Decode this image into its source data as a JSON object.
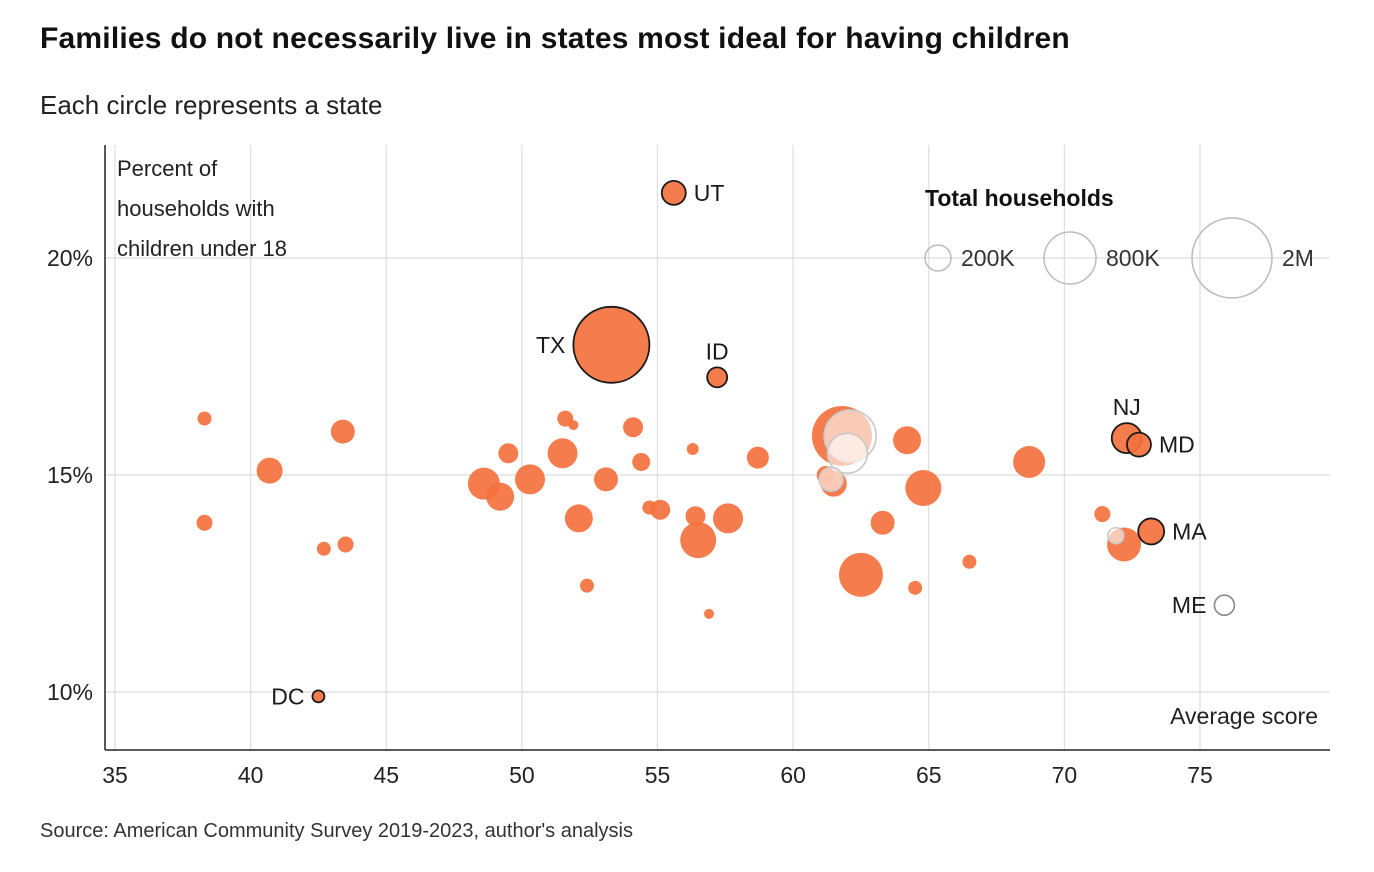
{
  "header": {
    "title": "Families do not necessarily live in states most ideal for having children",
    "subtitle": "Each circle represents a state"
  },
  "footer": {
    "source": "Source: American Community Survey 2019-2023, author's analysis"
  },
  "colors": {
    "accent": "#F4713D",
    "outline": "#1a1a1a",
    "hollow_stroke": "#c8c8c8",
    "grid": "#dddddd",
    "axis": "#222222",
    "text": "#222222"
  },
  "chart_data": {
    "type": "scatter",
    "title": "Families do not necessarily live in states most ideal for having children",
    "subtitle": "Each circle represents a state",
    "xlabel": "Average score",
    "ylabel": "Percent of households with children under 18",
    "ylabel_lines": [
      "Percent of",
      "households with",
      "children under 18"
    ],
    "x_ticks": [
      35,
      40,
      45,
      50,
      55,
      60,
      65,
      70,
      75
    ],
    "y_ticks": [
      10,
      15,
      20
    ],
    "y_tick_suffix": "%",
    "xlim": [
      34.6,
      79.8
    ],
    "ylim": [
      8.7,
      22.6
    ],
    "grid": true,
    "legend": {
      "title": "Total households",
      "position": "top-right",
      "items": [
        {
          "label": "200K",
          "r": 13
        },
        {
          "label": "800K",
          "r": 26
        },
        {
          "label": "2M",
          "r": 40
        }
      ]
    },
    "points": [
      {
        "x": 38.3,
        "y": 16.3,
        "r": 7
      },
      {
        "x": 38.3,
        "y": 13.9,
        "r": 8
      },
      {
        "x": 40.7,
        "y": 15.1,
        "r": 13
      },
      {
        "x": 43.4,
        "y": 16.0,
        "r": 12
      },
      {
        "x": 42.7,
        "y": 13.3,
        "r": 7
      },
      {
        "x": 43.5,
        "y": 13.4,
        "r": 8
      },
      {
        "x": 42.5,
        "y": 9.9,
        "r": 6,
        "label": "DC",
        "label_pos": "left",
        "outlined": true
      },
      {
        "x": 48.6,
        "y": 14.8,
        "r": 16
      },
      {
        "x": 49.2,
        "y": 14.5,
        "r": 14
      },
      {
        "x": 49.5,
        "y": 15.5,
        "r": 10
      },
      {
        "x": 50.3,
        "y": 14.9,
        "r": 15
      },
      {
        "x": 51.5,
        "y": 15.5,
        "r": 15
      },
      {
        "x": 51.6,
        "y": 16.3,
        "r": 8
      },
      {
        "x": 51.9,
        "y": 16.15,
        "r": 5
      },
      {
        "x": 52.1,
        "y": 14.0,
        "r": 14
      },
      {
        "x": 52.4,
        "y": 12.45,
        "r": 7
      },
      {
        "x": 53.1,
        "y": 14.9,
        "r": 12
      },
      {
        "x": 53.3,
        "y": 18.0,
        "r": 38,
        "label": "TX",
        "label_pos": "left",
        "outlined": true
      },
      {
        "x": 54.1,
        "y": 16.1,
        "r": 10
      },
      {
        "x": 54.4,
        "y": 15.3,
        "r": 9
      },
      {
        "x": 54.7,
        "y": 14.25,
        "r": 7
      },
      {
        "x": 55.1,
        "y": 14.2,
        "r": 10
      },
      {
        "x": 55.6,
        "y": 21.5,
        "r": 12,
        "label": "UT",
        "label_pos": "right",
        "outlined": true
      },
      {
        "x": 56.3,
        "y": 15.6,
        "r": 6
      },
      {
        "x": 56.5,
        "y": 13.5,
        "r": 18
      },
      {
        "x": 56.4,
        "y": 14.05,
        "r": 10
      },
      {
        "x": 57.2,
        "y": 17.25,
        "r": 10,
        "label": "ID",
        "label_pos": "above",
        "outlined": true
      },
      {
        "x": 57.6,
        "y": 14.0,
        "r": 15
      },
      {
        "x": 56.9,
        "y": 11.8,
        "r": 5
      },
      {
        "x": 58.7,
        "y": 15.4,
        "r": 11
      },
      {
        "x": 61.8,
        "y": 15.9,
        "r": 30
      },
      {
        "x": 61.2,
        "y": 15.0,
        "r": 9
      },
      {
        "x": 61.5,
        "y": 14.8,
        "r": 13
      },
      {
        "x": 62.1,
        "y": 15.9,
        "r": 26,
        "hollow": true
      },
      {
        "x": 62.0,
        "y": 15.5,
        "r": 20,
        "hollow": true
      },
      {
        "x": 61.4,
        "y": 14.9,
        "r": 12,
        "hollow": true
      },
      {
        "x": 62.5,
        "y": 12.7,
        "r": 22
      },
      {
        "x": 63.3,
        "y": 13.9,
        "r": 12
      },
      {
        "x": 64.2,
        "y": 15.8,
        "r": 14
      },
      {
        "x": 64.8,
        "y": 14.7,
        "r": 18
      },
      {
        "x": 64.5,
        "y": 12.4,
        "r": 7
      },
      {
        "x": 66.5,
        "y": 13.0,
        "r": 7
      },
      {
        "x": 68.7,
        "y": 15.3,
        "r": 16
      },
      {
        "x": 71.4,
        "y": 14.1,
        "r": 8
      },
      {
        "x": 72.3,
        "y": 15.85,
        "r": 15,
        "label": "NJ",
        "label_pos": "above",
        "outlined": true
      },
      {
        "x": 72.75,
        "y": 15.7,
        "r": 12,
        "label": "MD",
        "label_pos": "right",
        "outlined": true
      },
      {
        "x": 72.2,
        "y": 13.4,
        "r": 17
      },
      {
        "x": 71.9,
        "y": 13.6,
        "r": 8,
        "hollow": true
      },
      {
        "x": 73.2,
        "y": 13.7,
        "r": 13,
        "label": "MA",
        "label_pos": "right",
        "outlined": true
      },
      {
        "x": 75.9,
        "y": 12.0,
        "r": 10,
        "label": "ME",
        "label_pos": "left",
        "hollow": true,
        "gray_outline": true
      }
    ]
  }
}
